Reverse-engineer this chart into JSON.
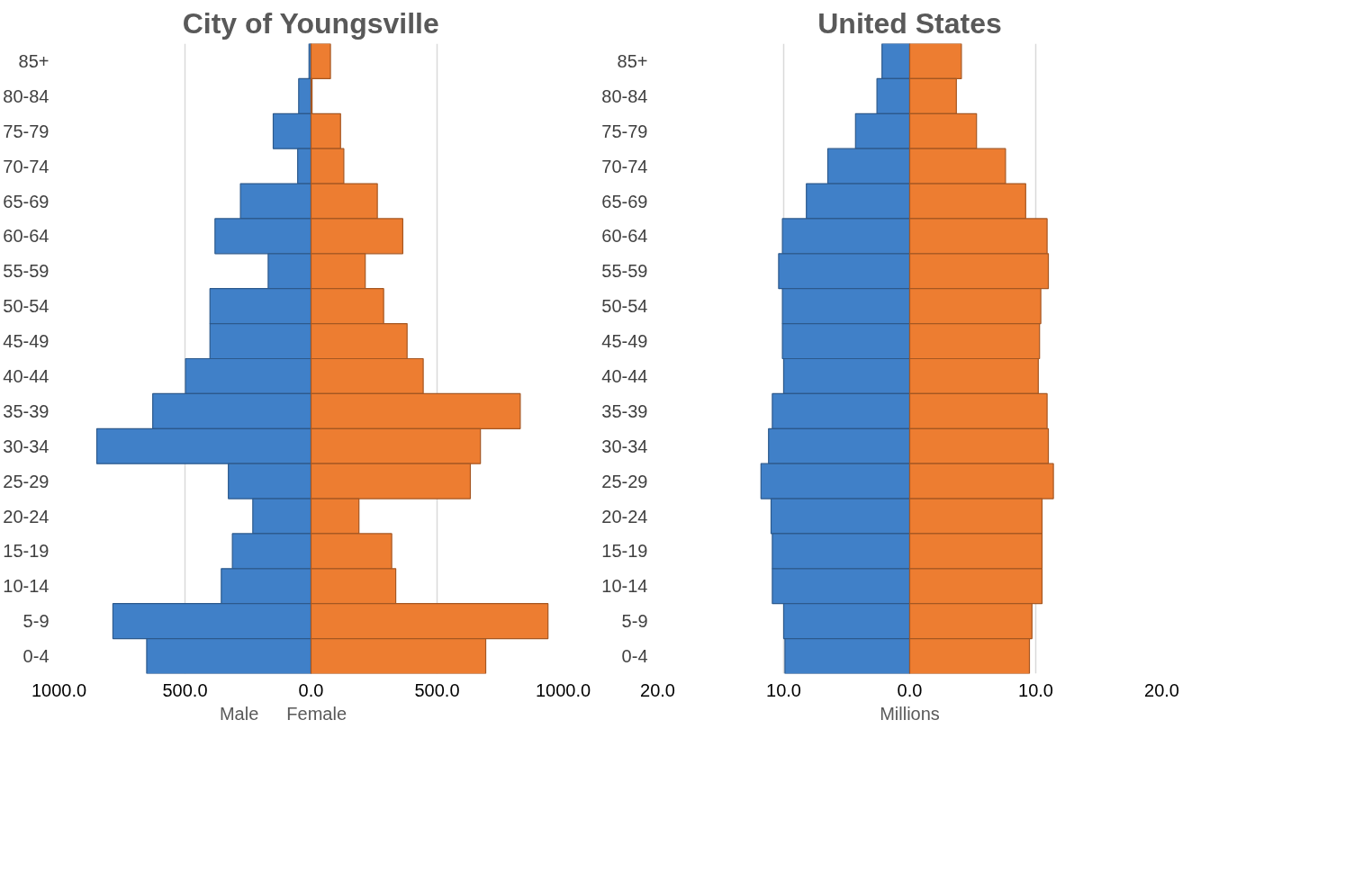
{
  "chart_data": [
    {
      "type": "bar",
      "orientation": "horizontal",
      "title": "City of Youngsville",
      "categories": [
        "85+",
        "80-84",
        "75-79",
        "70-74",
        "65-69",
        "60-64",
        "55-59",
        "50-54",
        "45-49",
        "40-44",
        "35-39",
        "30-34",
        "25-29",
        "20-24",
        "15-19",
        "10-14",
        "5-9",
        "0-4"
      ],
      "series": [
        {
          "name": "Male",
          "color": "#4080c8",
          "values": [
            -8,
            -49,
            -150,
            -53,
            -280,
            -381,
            -170,
            -401,
            -401,
            -498,
            -628,
            -850,
            -328,
            -231,
            -312,
            -356,
            -786,
            -652
          ]
        },
        {
          "name": "Female",
          "color": "#ed7d31",
          "values": [
            77,
            4,
            117,
            130,
            263,
            364,
            215,
            288,
            381,
            445,
            830,
            672,
            632,
            190,
            320,
            336,
            940,
            693
          ]
        }
      ],
      "xlim": [
        -1000,
        1000
      ],
      "xticks": [
        {
          "value": -1000,
          "label": "1000.0"
        },
        {
          "value": -500,
          "label": "500.0"
        },
        {
          "value": 0,
          "label": "0.0"
        },
        {
          "value": 500,
          "label": "500.0"
        },
        {
          "value": 1000,
          "label": "1000.0"
        }
      ],
      "grid": "x",
      "legend": "bottom",
      "stacked": true
    },
    {
      "type": "bar",
      "orientation": "horizontal",
      "title": "United States",
      "xlabel": "Millions",
      "categories": [
        "85+",
        "80-84",
        "75-79",
        "70-74",
        "65-69",
        "60-64",
        "55-59",
        "50-54",
        "45-49",
        "40-44",
        "35-39",
        "30-34",
        "25-29",
        "20-24",
        "15-19",
        "10-14",
        "5-9",
        "0-4"
      ],
      "series": [
        {
          "color": "#4080c8",
          "values": [
            -2.2,
            -2.6,
            -4.3,
            -6.5,
            -8.2,
            -10.1,
            -10.4,
            -10.1,
            -10.1,
            -10.0,
            -10.9,
            -11.2,
            -11.8,
            -11.0,
            -10.9,
            -10.9,
            -10.0,
            -9.9
          ]
        },
        {
          "color": "#ed7d31",
          "values": [
            4.1,
            3.7,
            5.3,
            7.6,
            9.2,
            10.9,
            11.0,
            10.4,
            10.3,
            10.2,
            10.9,
            11.0,
            11.4,
            10.5,
            10.5,
            10.5,
            9.7,
            9.5
          ]
        }
      ],
      "xlim": [
        -20,
        20
      ],
      "xticks": [
        {
          "value": -20,
          "label": "20.0"
        },
        {
          "value": -10,
          "label": "10.0"
        },
        {
          "value": 0,
          "label": "0.0"
        },
        {
          "value": 10,
          "label": "10.0"
        },
        {
          "value": 20,
          "label": "20.0"
        }
      ],
      "grid": "x",
      "stacked": true
    }
  ]
}
